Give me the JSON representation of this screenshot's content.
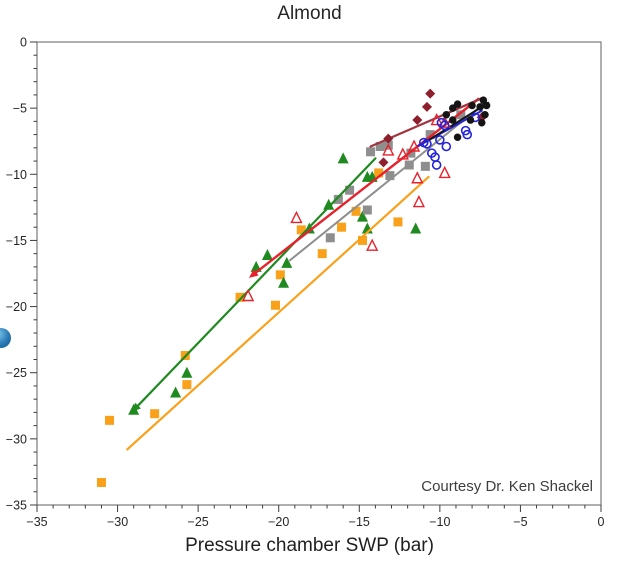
{
  "chart_data": {
    "type": "scatter",
    "title": "Almond",
    "xlabel": "Pressure chamber SWP (bar)",
    "ylabel": "",
    "annotation": "Courtesy Dr. Ken Shackel",
    "xlim": [
      -35,
      0
    ],
    "ylim": [
      -35,
      0
    ],
    "x_ticks_major": [
      -35,
      -30,
      -25,
      -20,
      -15,
      -10,
      -5,
      0
    ],
    "y_ticks_major": [
      0,
      -5,
      -10,
      -15,
      -20,
      -25,
      -30,
      -35
    ],
    "minor_tick_step": 1,
    "grid": false,
    "legend_position": "none",
    "frame_color": "#7a7a7a",
    "tick_color": "#3c3c3c",
    "series": [
      {
        "name": "orange-squares",
        "symbol": "square",
        "color": "#F9A11B",
        "size": 9,
        "points": [
          [
            -31.0,
            -33.3
          ],
          [
            -30.5,
            -28.6
          ],
          [
            -27.7,
            -28.1
          ],
          [
            -25.8,
            -23.7
          ],
          [
            -25.7,
            -25.9
          ],
          [
            -22.4,
            -19.3
          ],
          [
            -20.2,
            -19.9
          ],
          [
            -19.9,
            -17.6
          ],
          [
            -18.6,
            -14.2
          ],
          [
            -17.3,
            -16.0
          ],
          [
            -16.1,
            -14.0
          ],
          [
            -15.2,
            -12.8
          ],
          [
            -14.8,
            -15.0
          ],
          [
            -13.8,
            -9.9
          ],
          [
            -12.6,
            -13.6
          ]
        ],
        "trend": {
          "x1": -29.4,
          "y1": -30.8,
          "x2": -10.7,
          "y2": -10.2,
          "width": 2.2
        }
      },
      {
        "name": "green-triangles",
        "symbol": "triangle",
        "color": "#1F8A1F",
        "size": 10,
        "points": [
          [
            -29.0,
            -27.8
          ],
          [
            -26.4,
            -26.5
          ],
          [
            -25.7,
            -25.0
          ],
          [
            -21.4,
            -17.0
          ],
          [
            -20.7,
            -16.1
          ],
          [
            -19.5,
            -16.7
          ],
          [
            -19.7,
            -18.2
          ],
          [
            -18.1,
            -14.1
          ],
          [
            -16.9,
            -12.3
          ],
          [
            -16.0,
            -8.8
          ],
          [
            -14.5,
            -10.2
          ],
          [
            -14.2,
            -10.2
          ],
          [
            -14.8,
            -13.2
          ],
          [
            -14.5,
            -14.1
          ],
          [
            -11.5,
            -14.1
          ]
        ],
        "trend": {
          "x1": -28.9,
          "y1": -27.7,
          "x2": -14.0,
          "y2": -8.8,
          "width": 2.2,
          "arrow_start": true
        }
      },
      {
        "name": "gray-squares",
        "symbol": "square",
        "color": "#8E8E8E",
        "size": 9,
        "points": [
          [
            -14.3,
            -8.3
          ],
          [
            -13.7,
            -7.9
          ],
          [
            -13.2,
            -7.8
          ],
          [
            -11.9,
            -9.3
          ],
          [
            -13.1,
            -10.1
          ],
          [
            -15.6,
            -11.2
          ],
          [
            -16.3,
            -11.9
          ],
          [
            -14.5,
            -12.7
          ],
          [
            -16.8,
            -14.8
          ],
          [
            -11.8,
            -8.4
          ],
          [
            -10.9,
            -9.4
          ],
          [
            -10.6,
            -7.0
          ],
          [
            -8.7,
            -5.5
          ]
        ],
        "trend": {
          "x1": -19.3,
          "y1": -16.5,
          "x2": -7.7,
          "y2": -5.1,
          "width": 2
        }
      },
      {
        "name": "red-open-triangles",
        "symbol": "triangle-open",
        "color": "#E8212B",
        "size": 9,
        "points": [
          [
            -13.2,
            -8.2
          ],
          [
            -11.6,
            -7.9
          ],
          [
            -12.3,
            -8.5
          ],
          [
            -9.7,
            -6.1
          ],
          [
            -10.2,
            -5.9
          ],
          [
            -11.4,
            -10.3
          ],
          [
            -9.7,
            -9.9
          ],
          [
            -11.3,
            -12.1
          ],
          [
            -14.2,
            -15.4
          ],
          [
            -18.9,
            -13.3
          ],
          [
            -21.9,
            -19.2
          ]
        ],
        "trend": {
          "x1": -21.6,
          "y1": -17.6,
          "x2": -7.6,
          "y2": -4.3,
          "width": 2.4,
          "arrow_start": true
        }
      },
      {
        "name": "darkred-diamonds",
        "symbol": "diamond",
        "color": "#8E1F2C",
        "size": 8,
        "points": [
          [
            -10.6,
            -3.9
          ],
          [
            -10.8,
            -4.9
          ],
          [
            -11.4,
            -5.9
          ],
          [
            -13.2,
            -7.3
          ],
          [
            -7.4,
            -5.7
          ],
          [
            -13.5,
            -9.1
          ]
        ],
        "trend": {
          "x1": -14.3,
          "y1": -7.9,
          "x2": -7.3,
          "y2": -4.2,
          "width": 2.2,
          "color": "#A23440"
        }
      },
      {
        "name": "blue-open-circles",
        "symbol": "circle-open",
        "color": "#2323D7",
        "size": 8,
        "points": [
          [
            -9.7,
            -6.3
          ],
          [
            -9.9,
            -6.1
          ],
          [
            -10.0,
            -7.4
          ],
          [
            -11.0,
            -7.6
          ],
          [
            -10.8,
            -7.7
          ],
          [
            -9.6,
            -7.9
          ],
          [
            -8.3,
            -7.0
          ],
          [
            -8.4,
            -6.7
          ],
          [
            -10.3,
            -8.7
          ],
          [
            -10.5,
            -8.4
          ],
          [
            -10.2,
            -9.3
          ],
          [
            -7.8,
            -5.7
          ]
        ],
        "trend": {
          "x1": -11.4,
          "y1": -7.9,
          "x2": -7.4,
          "y2": -5.2,
          "width": 2
        }
      },
      {
        "name": "black-circles",
        "symbol": "circle",
        "color": "#151515",
        "size": 7.5,
        "points": [
          [
            -9.2,
            -5.0
          ],
          [
            -8.9,
            -4.7
          ],
          [
            -8.0,
            -4.8
          ],
          [
            -7.5,
            -4.9
          ],
          [
            -7.1,
            -4.8
          ],
          [
            -7.3,
            -4.4
          ],
          [
            -9.2,
            -5.9
          ],
          [
            -8.1,
            -5.9
          ],
          [
            -7.4,
            -6.1
          ],
          [
            -8.9,
            -7.2
          ],
          [
            -7.2,
            -5.5
          ],
          [
            -9.6,
            -5.5
          ]
        ],
        "trend": {
          "x1": -10.8,
          "y1": -7.5,
          "x2": -7.0,
          "y2": -4.6,
          "width": 2
        }
      }
    ]
  },
  "decorations": {
    "blue_sphere": "left-edge-half-circle"
  }
}
